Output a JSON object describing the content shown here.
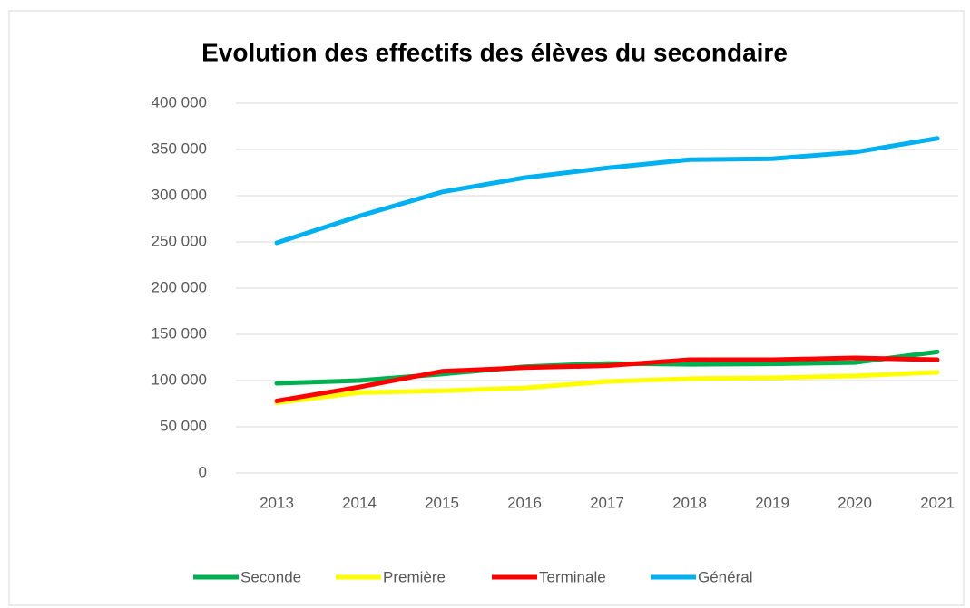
{
  "chart_data": {
    "type": "line",
    "title": "Evolution des effectifs des élèves du secondaire",
    "categories": [
      "2013",
      "2014",
      "2015",
      "2016",
      "2017",
      "2018",
      "2019",
      "2020",
      "2021"
    ],
    "series": [
      {
        "name": "Seconde",
        "color": "#00b050",
        "values": [
          97000,
          100000,
          107000,
          115000,
          118500,
          117500,
          118000,
          119500,
          131000
        ]
      },
      {
        "name": "Première",
        "color": "#ffff00",
        "values": [
          76000,
          87000,
          89000,
          92000,
          99000,
          102000,
          103000,
          105000,
          109000
        ]
      },
      {
        "name": "Terminale",
        "color": "#ff0000",
        "values": [
          78000,
          93000,
          110000,
          114000,
          116000,
          122500,
          122500,
          124500,
          122500
        ]
      },
      {
        "name": "Général",
        "color": "#00b0f0",
        "values": [
          249000,
          278000,
          304000,
          319500,
          330000,
          339000,
          340000,
          347000,
          362000
        ]
      }
    ],
    "ylim": [
      0,
      400000
    ],
    "yticks": [
      0,
      {
        "value": 50000,
        "label": "50 000"
      },
      {
        "value": 100000,
        "label": "100 000"
      },
      {
        "value": 150000,
        "label": "150 000"
      },
      {
        "value": 200000,
        "label": "200 000"
      },
      {
        "value": 250000,
        "label": "250 000"
      },
      {
        "value": 300000,
        "label": "300 000"
      },
      {
        "value": 350000,
        "label": "350 000"
      },
      {
        "value": 400000,
        "label": "400 000"
      }
    ],
    "grid": true,
    "legend": "bottom"
  }
}
